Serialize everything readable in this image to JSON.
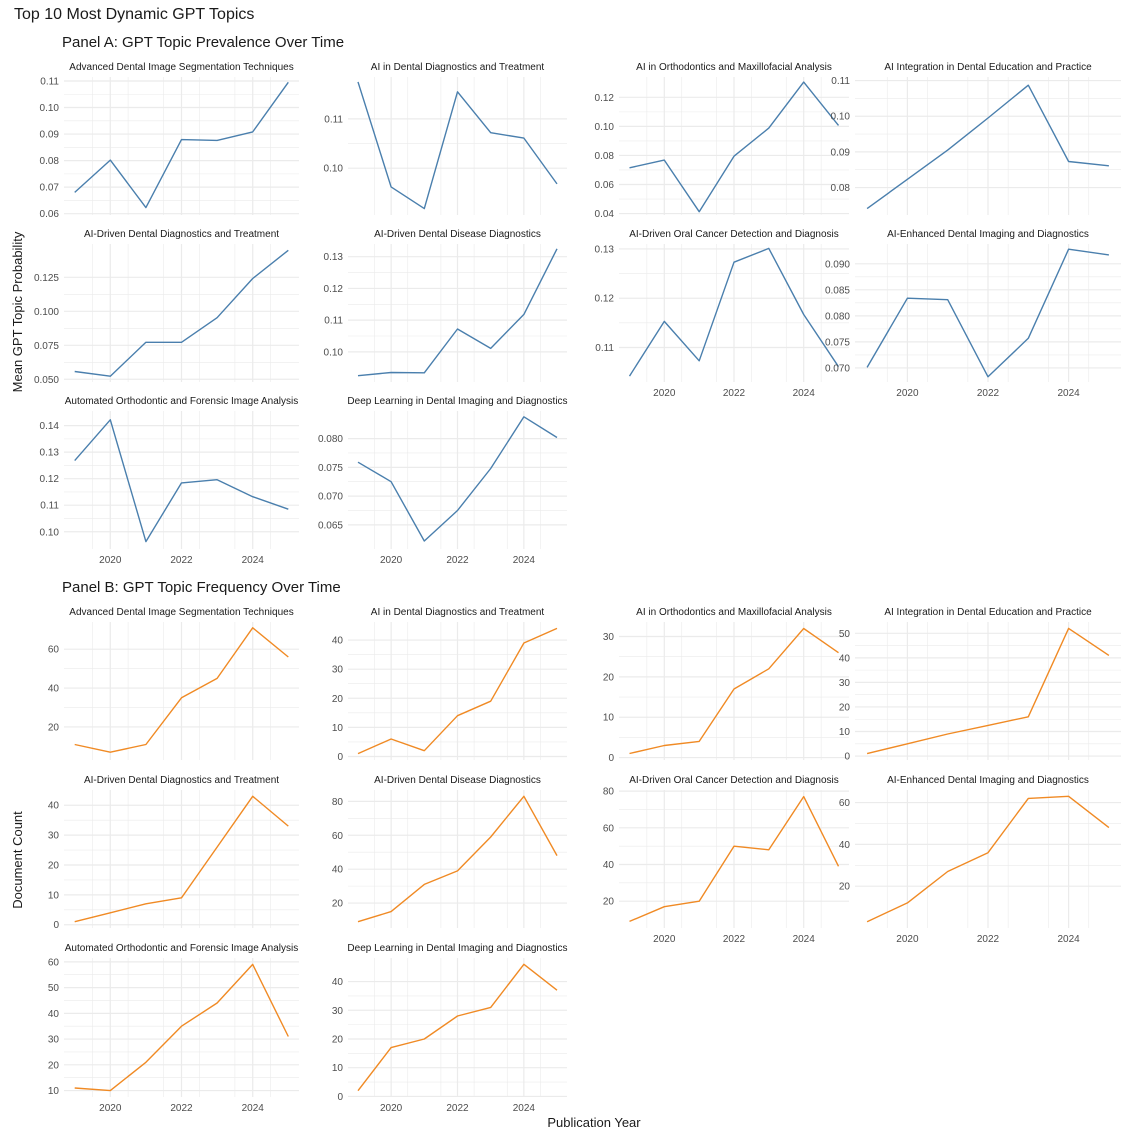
{
  "figure": {
    "title": "Top 10 Most Dynamic GPT Topics",
    "x_label": "Publication Year"
  },
  "colors": {
    "panel_a_line": "#4a7fad",
    "panel_b_line": "#f08a24",
    "grid": "#ebebeb",
    "text": "#1a1a1a",
    "tick_text": "#4d4d4d"
  },
  "chart_data": [
    {
      "panel": "Panel A: GPT Topic Prevalence Over Time",
      "type": "line",
      "ylabel": "Mean GPT Topic Probability",
      "x": [
        2019,
        2020,
        2021,
        2022,
        2023,
        2024,
        2025
      ],
      "x_ticks": [
        2020,
        2022,
        2024
      ],
      "facets": [
        {
          "title": "Advanced Dental Image Segmentation Techniques",
          "values": [
            0.068,
            0.0802,
            0.0623,
            0.0879,
            0.0876,
            0.0908,
            0.1095
          ],
          "ylim": [
            0.0595,
            0.1115
          ],
          "y_ticks": [
            0.06,
            0.07,
            0.08,
            0.09,
            0.1,
            0.11
          ],
          "y_tick_labels": [
            "0.06",
            "0.07",
            "0.08",
            "0.09",
            "0.10",
            "0.11"
          ]
        },
        {
          "title": "AI in Dental Diagnostics and Treatment",
          "values": [
            0.1175,
            0.0962,
            0.0918,
            0.1155,
            0.1072,
            0.1061,
            0.0968
          ],
          "ylim": [
            0.0905,
            0.1185
          ],
          "y_ticks": [
            0.1,
            0.11
          ],
          "y_tick_labels": [
            "0.10",
            "0.11"
          ]
        },
        {
          "title": "AI in Orthodontics and Maxillofacial Analysis",
          "values": [
            0.0715,
            0.0768,
            0.0413,
            0.0795,
            0.0988,
            0.1305,
            0.1007
          ],
          "ylim": [
            0.039,
            0.134
          ],
          "y_ticks": [
            0.04,
            0.06,
            0.08,
            0.1,
            0.12
          ],
          "y_tick_labels": [
            "0.04",
            "0.06",
            "0.08",
            "0.10",
            "0.12"
          ]
        },
        {
          "title": "AI Integration in Dental Education and Practice",
          "values": [
            0.0741,
            0.0823,
            0.0905,
            0.0995,
            0.1087,
            0.0873,
            0.0861
          ],
          "ylim": [
            0.0723,
            0.111
          ],
          "y_ticks": [
            0.08,
            0.09,
            0.1,
            0.11
          ],
          "y_tick_labels": [
            "0.08",
            "0.09",
            "0.10",
            "0.11"
          ]
        },
        {
          "title": "AI-Driven Dental Diagnostics and Treatment",
          "values": [
            0.0557,
            0.0523,
            0.0772,
            0.0772,
            0.0953,
            0.1241,
            0.1449
          ],
          "ylim": [
            0.048,
            0.1495
          ],
          "y_ticks": [
            0.05,
            0.075,
            0.1,
            0.125
          ],
          "y_tick_labels": [
            "0.050",
            "0.075",
            "0.100",
            "0.125"
          ]
        },
        {
          "title": "AI-Driven Dental Disease Diagnostics",
          "values": [
            0.0925,
            0.0935,
            0.0934,
            0.1072,
            0.1011,
            0.1118,
            0.1325
          ],
          "ylim": [
            0.0905,
            0.134
          ],
          "y_ticks": [
            0.1,
            0.11,
            0.12,
            0.13
          ],
          "y_tick_labels": [
            "0.10",
            "0.11",
            "0.12",
            "0.13"
          ]
        },
        {
          "title": "AI-Driven Oral Cancer Detection and Diagnosis",
          "values": [
            0.1042,
            0.1153,
            0.1073,
            0.1273,
            0.1301,
            0.1167,
            0.1061
          ],
          "ylim": [
            0.103,
            0.131
          ],
          "y_ticks": [
            0.11,
            0.12,
            0.13
          ],
          "y_tick_labels": [
            "0.11",
            "0.12",
            "0.13"
          ]
        },
        {
          "title": "AI-Enhanced Dental Imaging and Diagnostics",
          "values": [
            0.0701,
            0.0834,
            0.0831,
            0.0683,
            0.0757,
            0.0928,
            0.0917
          ],
          "ylim": [
            0.0673,
            0.0938
          ],
          "y_ticks": [
            0.07,
            0.075,
            0.08,
            0.085,
            0.09
          ],
          "y_tick_labels": [
            "0.070",
            "0.075",
            "0.080",
            "0.085",
            "0.090"
          ]
        },
        {
          "title": "Automated Orthodontic and Forensic Image Analysis",
          "values": [
            0.1268,
            0.1422,
            0.0963,
            0.1184,
            0.1196,
            0.1132,
            0.1085
          ],
          "ylim": [
            0.0935,
            0.1455
          ],
          "y_ticks": [
            0.1,
            0.11,
            0.12,
            0.13,
            0.14
          ],
          "y_tick_labels": [
            "0.10",
            "0.11",
            "0.12",
            "0.13",
            "0.14"
          ]
        },
        {
          "title": "Deep Learning in Dental Imaging and Diagnostics",
          "values": [
            0.0759,
            0.0725,
            0.0622,
            0.0675,
            0.0748,
            0.0838,
            0.0802
          ],
          "ylim": [
            0.0608,
            0.0848
          ],
          "y_ticks": [
            0.065,
            0.07,
            0.075,
            0.08
          ],
          "y_tick_labels": [
            "0.065",
            "0.070",
            "0.075",
            "0.080"
          ]
        }
      ]
    },
    {
      "panel": "Panel B: GPT Topic Frequency Over Time",
      "type": "line",
      "ylabel": "Document Count",
      "x": [
        2019,
        2020,
        2021,
        2022,
        2023,
        2024,
        2025
      ],
      "x_ticks": [
        2020,
        2022,
        2024
      ],
      "facets": [
        {
          "title": "Advanced Dental Image Segmentation Techniques",
          "values": [
            11,
            7,
            11,
            35,
            45,
            71,
            56
          ],
          "ylim": [
            3,
            74
          ],
          "y_ticks": [
            20,
            40,
            60
          ],
          "y_tick_labels": [
            "20",
            "40",
            "60"
          ]
        },
        {
          "title": "AI in Dental Diagnostics and Treatment",
          "values": [
            1,
            6,
            2,
            14,
            19,
            39,
            44
          ],
          "ylim": [
            -1.2,
            46.2
          ],
          "y_ticks": [
            0,
            10,
            20,
            30,
            40
          ],
          "y_tick_labels": [
            "0",
            "10",
            "20",
            "30",
            "40"
          ]
        },
        {
          "title": "AI in Orthodontics and Maxillofacial Analysis",
          "values": [
            1,
            3,
            4,
            17,
            22,
            32,
            26
          ],
          "ylim": [
            -0.6,
            33.6
          ],
          "y_ticks": [
            0,
            10,
            20,
            30
          ],
          "y_tick_labels": [
            "0",
            "10",
            "20",
            "30"
          ]
        },
        {
          "title": "AI Integration in Dental Education and Practice",
          "values": [
            1,
            5,
            9,
            12.5,
            16,
            52,
            41
          ],
          "ylim": [
            -1.6,
            54.6
          ],
          "y_ticks": [
            0,
            10,
            20,
            30,
            40,
            50
          ],
          "y_tick_labels": [
            "0",
            "10",
            "20",
            "30",
            "40",
            "50"
          ]
        },
        {
          "title": "AI-Driven Dental Diagnostics and Treatment",
          "values": [
            1,
            4,
            7,
            9,
            26,
            43,
            33
          ],
          "ylim": [
            -1.1,
            45.1
          ],
          "y_ticks": [
            0,
            10,
            20,
            30,
            40
          ],
          "y_tick_labels": [
            "0",
            "10",
            "20",
            "30",
            "40"
          ]
        },
        {
          "title": "AI-Driven Dental Disease Diagnostics",
          "values": [
            9,
            15,
            31,
            39,
            59,
            83,
            48
          ],
          "ylim": [
            5.3,
            86.7
          ],
          "y_ticks": [
            20,
            40,
            60,
            80
          ],
          "y_tick_labels": [
            "20",
            "40",
            "60",
            "80"
          ]
        },
        {
          "title": "AI-Driven Oral Cancer Detection and Diagnosis",
          "values": [
            9,
            17,
            20,
            50,
            48,
            77,
            39
          ],
          "ylim": [
            5.4,
            80.6
          ],
          "y_ticks": [
            20,
            40,
            60,
            80
          ],
          "y_tick_labels": [
            "20",
            "40",
            "60",
            "80"
          ]
        },
        {
          "title": "AI-Enhanced Dental Imaging and Diagnostics",
          "values": [
            3,
            12,
            27,
            36,
            62,
            63,
            48
          ],
          "ylim": [
            0,
            66
          ],
          "y_ticks": [
            20,
            40,
            60
          ],
          "y_tick_labels": [
            "20",
            "40",
            "60"
          ]
        },
        {
          "title": "Automated Orthodontic and Forensic Image Analysis",
          "values": [
            11,
            10,
            21,
            35,
            44,
            59,
            31
          ],
          "ylim": [
            7.5,
            61.5
          ],
          "y_ticks": [
            10,
            20,
            30,
            40,
            50,
            60
          ],
          "y_tick_labels": [
            "10",
            "20",
            "30",
            "40",
            "50",
            "60"
          ]
        },
        {
          "title": "Deep Learning in Dental Imaging and Diagnostics",
          "values": [
            2,
            17,
            20,
            28,
            31,
            46,
            37
          ],
          "ylim": [
            -0.2,
            48.2
          ],
          "y_ticks": [
            0,
            10,
            20,
            30,
            40
          ],
          "y_tick_labels": [
            "0",
            "10",
            "20",
            "30",
            "40"
          ]
        }
      ]
    }
  ]
}
